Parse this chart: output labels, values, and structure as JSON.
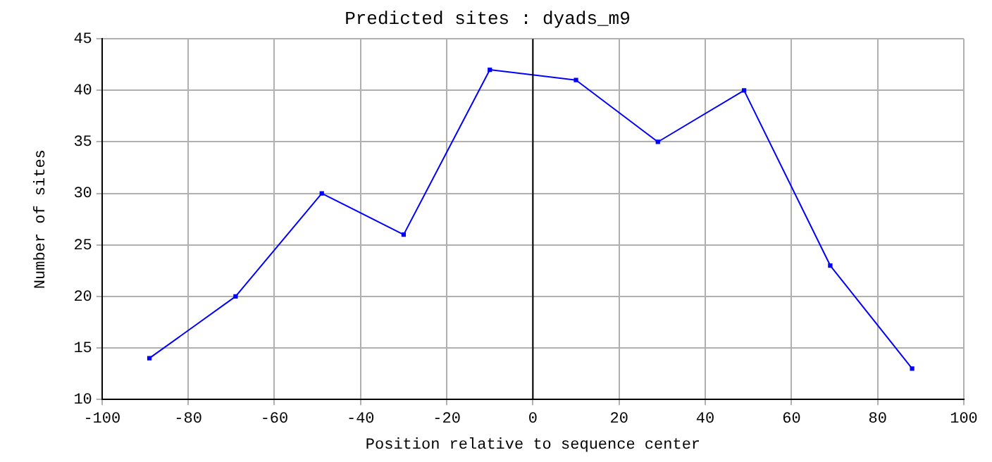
{
  "chart_data": {
    "type": "line",
    "title": "Predicted sites : dyads_m9",
    "xlabel": "Position relative to sequence center",
    "ylabel": "Number of sites",
    "x": [
      -89,
      -69,
      -49,
      -30,
      -10,
      10,
      29,
      49,
      69,
      88
    ],
    "series": [
      {
        "color": "#0000ff",
        "values": [
          14,
          20,
          30,
          26,
          42,
          41,
          35,
          40,
          23,
          13
        ]
      }
    ],
    "xlim": [
      -100,
      100
    ],
    "xticks": [
      -100,
      -80,
      -60,
      -40,
      -20,
      0,
      20,
      40,
      60,
      80,
      100
    ],
    "ylim": [
      10,
      45
    ],
    "yticks": [
      10,
      15,
      20,
      25,
      30,
      35,
      40,
      45
    ],
    "ref_lines": [
      {
        "axis": "x",
        "value": 0,
        "color": "#000000"
      }
    ],
    "grid": true,
    "marker": "square",
    "line_style": "solid"
  }
}
